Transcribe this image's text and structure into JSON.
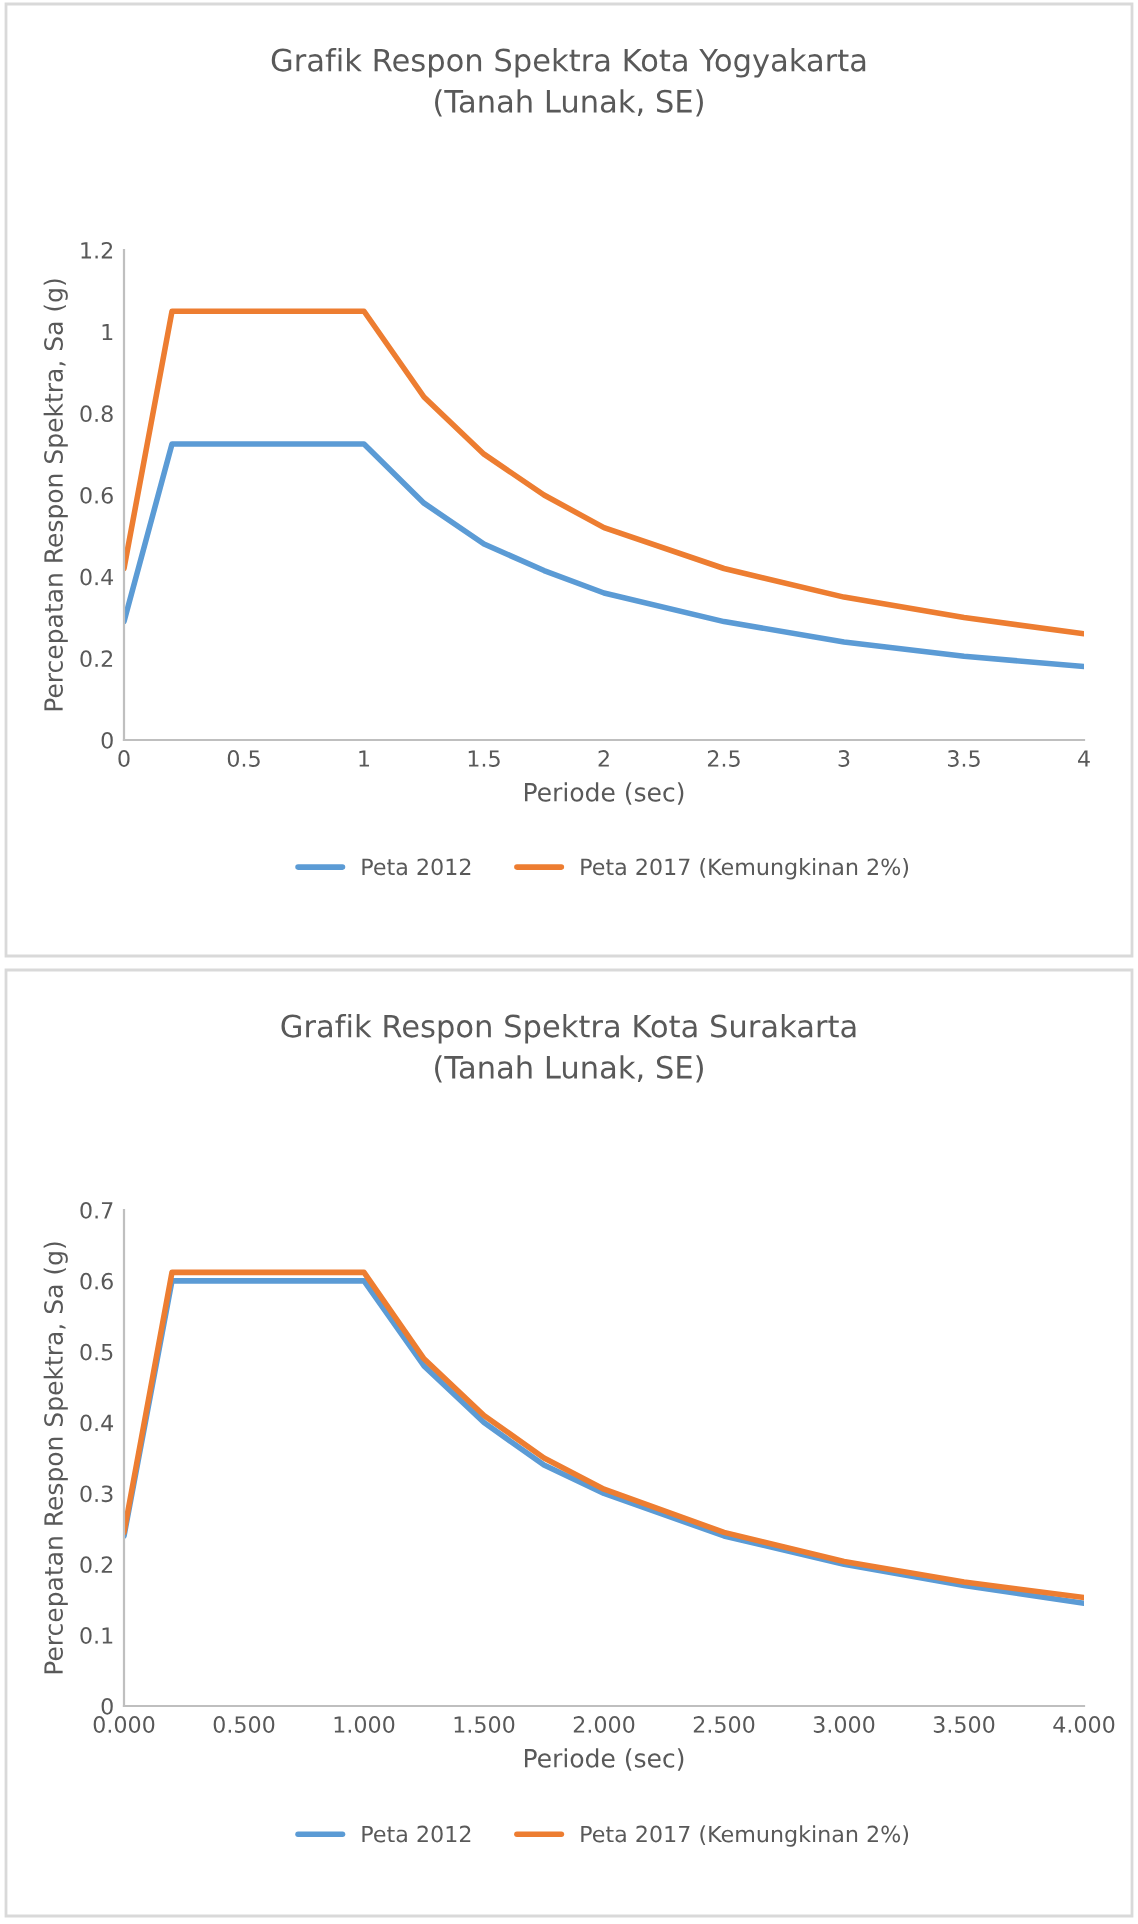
{
  "chart_data": [
    {
      "type": "line",
      "title": "Grafik Respon Spektra Kota Yogyakarta",
      "subtitle": "(Tanah Lunak, SE)",
      "xlabel": "Periode (sec)",
      "ylabel": "Percepatan Respon Spektra, Sa (g)",
      "x": [
        0,
        0.2,
        0.5,
        1,
        1.25,
        1.5,
        1.75,
        2,
        2.5,
        3,
        3.5,
        4
      ],
      "series": [
        {
          "name": "Peta 2012",
          "color": "#5b9bd5",
          "values": [
            0.29,
            0.725,
            0.725,
            0.725,
            0.58,
            0.48,
            0.415,
            0.36,
            0.29,
            0.24,
            0.205,
            0.18
          ]
        },
        {
          "name": "Peta 2017 (Kemungkinan 2%)",
          "color": "#ed7d31",
          "values": [
            0.42,
            1.05,
            1.05,
            1.05,
            0.84,
            0.7,
            0.6,
            0.52,
            0.42,
            0.35,
            0.3,
            0.26
          ]
        }
      ],
      "xlim": [
        0,
        4
      ],
      "xticks": [
        0,
        0.5,
        1,
        1.5,
        2,
        2.5,
        3,
        3.5,
        4
      ],
      "ylim": [
        0,
        1.2
      ],
      "yticks": [
        0,
        0.2,
        0.4,
        0.6,
        0.8,
        1,
        1.2
      ],
      "grid": false,
      "legend": "bottom",
      "line_style": "solid",
      "marker": "none"
    },
    {
      "type": "line",
      "title": "Grafik Respon Spektra Kota Surakarta",
      "subtitle": "(Tanah Lunak, SE)",
      "xlabel": "Periode (sec)",
      "ylabel": "Percepatan Respon Spektra, Sa (g)",
      "x": [
        0,
        0.2,
        0.5,
        1,
        1.25,
        1.5,
        1.75,
        2,
        2.5,
        3,
        3.5,
        4
      ],
      "series": [
        {
          "name": "Peta 2012",
          "color": "#5b9bd5",
          "values": [
            0.24,
            0.6,
            0.6,
            0.6,
            0.48,
            0.4,
            0.34,
            0.3,
            0.24,
            0.2,
            0.17,
            0.145
          ]
        },
        {
          "name": "Peta 2017 (Kemungkinan 2%)",
          "color": "#ed7d31",
          "values": [
            0.245,
            0.612,
            0.612,
            0.612,
            0.49,
            0.41,
            0.35,
            0.306,
            0.245,
            0.204,
            0.175,
            0.153
          ]
        }
      ],
      "xlim": [
        0,
        4
      ],
      "xticks": [
        {
          "value": 0,
          "label": "0.000"
        },
        {
          "value": 0.5,
          "label": "0.500"
        },
        {
          "value": 1,
          "label": "1.000"
        },
        {
          "value": 1.5,
          "label": "1.500"
        },
        {
          "value": 2,
          "label": "2.000"
        },
        {
          "value": 2.5,
          "label": "2.500"
        },
        {
          "value": 3,
          "label": "3.000"
        },
        {
          "value": 3.5,
          "label": "3.500"
        },
        {
          "value": 4,
          "label": "4.000"
        }
      ],
      "ylim": [
        0,
        0.7
      ],
      "yticks": [
        0,
        0.1,
        0.2,
        0.3,
        0.4,
        0.5,
        0.6,
        0.7
      ],
      "grid": false,
      "legend": "bottom",
      "line_style": "solid",
      "marker": "none"
    }
  ]
}
